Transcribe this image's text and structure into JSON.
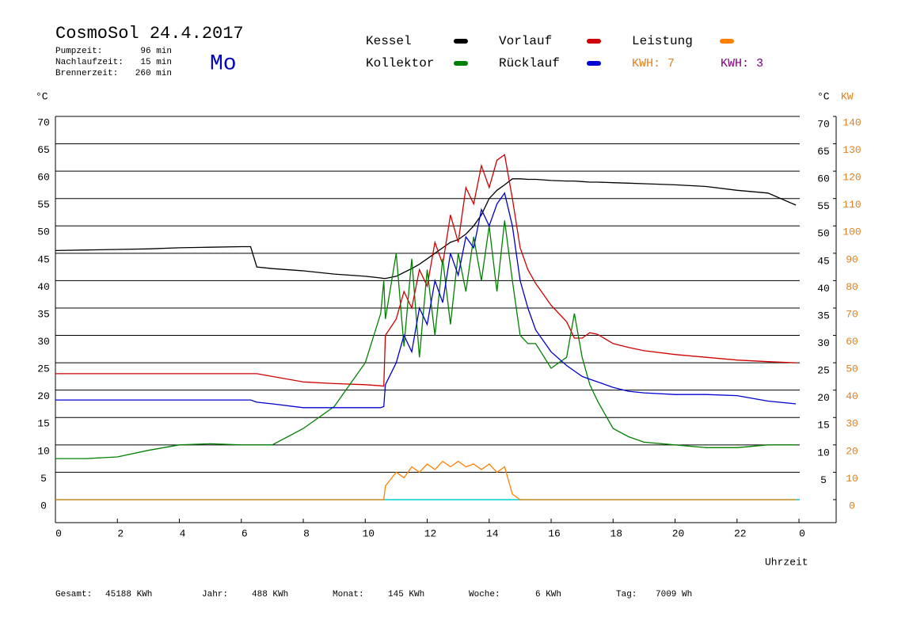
{
  "chart_data": {
    "type": "line",
    "title": "CosmoSol 24.4.2017",
    "info": [
      {
        "label": "Pumpzeit:",
        "value": "96 min"
      },
      {
        "label": "Nachlaufzeit:",
        "value": "15 min"
      },
      {
        "label": "Brennerzeit:",
        "value": "260 min"
      }
    ],
    "day": "Mo",
    "y_unit": "°C",
    "y2_unit": "KW",
    "xlabel": "Uhrzeit",
    "kwh_labels": [
      {
        "text": "KWH: 7",
        "color": "#e08020"
      },
      {
        "text": "KWH: 3",
        "color": "#800080"
      }
    ],
    "footer": [
      {
        "label": "Gesamt:",
        "value": "45188 KWh"
      },
      {
        "label": "Jahr:",
        "value": "488 KWh"
      },
      {
        "label": "Monat:",
        "value": "145 KWh"
      },
      {
        "label": "Woche:",
        "value": "6 KWh"
      },
      {
        "label": "Tag:",
        "value": "7009 Wh"
      }
    ],
    "xlim": [
      0,
      25.2
    ],
    "xticks": [
      0,
      2,
      4,
      6,
      8,
      10,
      12,
      14,
      16,
      18,
      20,
      22,
      {
        "value": 24,
        "label": "0"
      }
    ],
    "ylim": [
      -4.2,
      70
    ],
    "yticks": [
      0,
      5,
      10,
      15,
      20,
      25,
      30,
      35,
      40,
      45,
      50,
      55,
      60,
      65,
      70
    ],
    "y_right_ticks": [
      5,
      10,
      15,
      20,
      25,
      30,
      35,
      40,
      45,
      50,
      55,
      60,
      65,
      70
    ],
    "y2lim": [
      -8.4,
      140
    ],
    "y2ticks": [
      0,
      10,
      20,
      30,
      40,
      50,
      60,
      70,
      80,
      90,
      100,
      110,
      120,
      130,
      140
    ],
    "grid": true,
    "x": [
      0,
      1,
      2,
      3,
      4,
      5,
      6,
      6.3,
      6.5,
      7,
      8,
      9,
      10,
      10.5,
      10.6,
      10.65,
      11,
      11.25,
      11.5,
      11.75,
      12,
      12.25,
      12.5,
      12.75,
      13,
      13.25,
      13.5,
      13.75,
      14,
      14.25,
      14.5,
      14.75,
      15,
      15.25,
      15.5,
      16,
      16.5,
      16.75,
      17,
      17.25,
      17.5,
      18,
      18.5,
      19,
      20,
      21,
      22,
      23,
      23.9
    ],
    "series": [
      {
        "name": "Kessel",
        "color": "#000000",
        "values": [
          45.5,
          45.6,
          45.7,
          45.8,
          46,
          46.1,
          46.2,
          46.2,
          42.5,
          42.2,
          41.8,
          41.2,
          40.8,
          40.5,
          40.4,
          40.4,
          40.8,
          41.5,
          42.2,
          43,
          44,
          45,
          46,
          47,
          47.5,
          48.5,
          50,
          52,
          55,
          56.5,
          57.5,
          58.6,
          58.6,
          58.5,
          58.5,
          58.3,
          58.2,
          58.2,
          58.1,
          58,
          58,
          57.9,
          57.8,
          57.7,
          57.5,
          57.2,
          56.5,
          56,
          53.8
        ]
      },
      {
        "name": "Vorlauf",
        "color": "#d00000",
        "values": [
          23,
          23,
          23,
          23,
          23,
          23,
          23,
          23,
          23,
          22.5,
          21.5,
          21.2,
          21,
          20.8,
          20.7,
          30,
          33,
          38,
          35,
          42,
          39,
          47,
          43,
          52,
          47,
          57,
          54,
          61,
          57,
          62,
          63,
          55,
          46,
          42,
          39.5,
          35.5,
          32.5,
          29.5,
          29.5,
          30.5,
          30.2,
          28.5,
          27.8,
          27.2,
          26.5,
          26,
          25.5,
          25.2,
          25
        ]
      },
      {
        "name": "Leistung",
        "color": "#ff8000",
        "axis": "y2",
        "values": [
          0,
          0,
          0,
          0,
          0,
          0,
          0,
          0,
          0,
          0,
          0,
          0,
          0,
          0,
          0,
          5,
          10,
          8,
          12,
          10,
          13,
          11,
          14,
          12,
          14,
          12,
          13,
          11,
          13,
          10,
          12,
          2,
          0,
          0,
          0,
          0,
          0,
          0,
          0,
          0,
          0,
          0,
          0,
          0,
          0,
          0,
          0,
          0,
          0
        ]
      },
      {
        "name": "Kollektor",
        "color": "#008000",
        "values": [
          7.5,
          7.5,
          7.8,
          9,
          10,
          10.2,
          10,
          10,
          10,
          10,
          13,
          17,
          25,
          34,
          40,
          33,
          45,
          28,
          44,
          26,
          42,
          30,
          44,
          32,
          45,
          38,
          48,
          40,
          50,
          38,
          51,
          40,
          30,
          28.5,
          28.5,
          24,
          26,
          34,
          26,
          21,
          18,
          13,
          11.5,
          10.5,
          10,
          9.5,
          9.5,
          10,
          10
        ]
      },
      {
        "name": "Rücklauf",
        "color": "#0000d0",
        "values": [
          18.2,
          18.2,
          18.2,
          18.2,
          18.2,
          18.2,
          18.2,
          18.2,
          17.8,
          17.5,
          16.8,
          16.8,
          16.8,
          16.8,
          17,
          21,
          25,
          30,
          27,
          35,
          32,
          40,
          36,
          45,
          41,
          48,
          46,
          53,
          50,
          54,
          56,
          50,
          40,
          35,
          31,
          27,
          24.5,
          23.5,
          22.5,
          22,
          21.5,
          20.5,
          19.8,
          19.5,
          19.2,
          19.2,
          19,
          18,
          17.5
        ]
      }
    ]
  }
}
